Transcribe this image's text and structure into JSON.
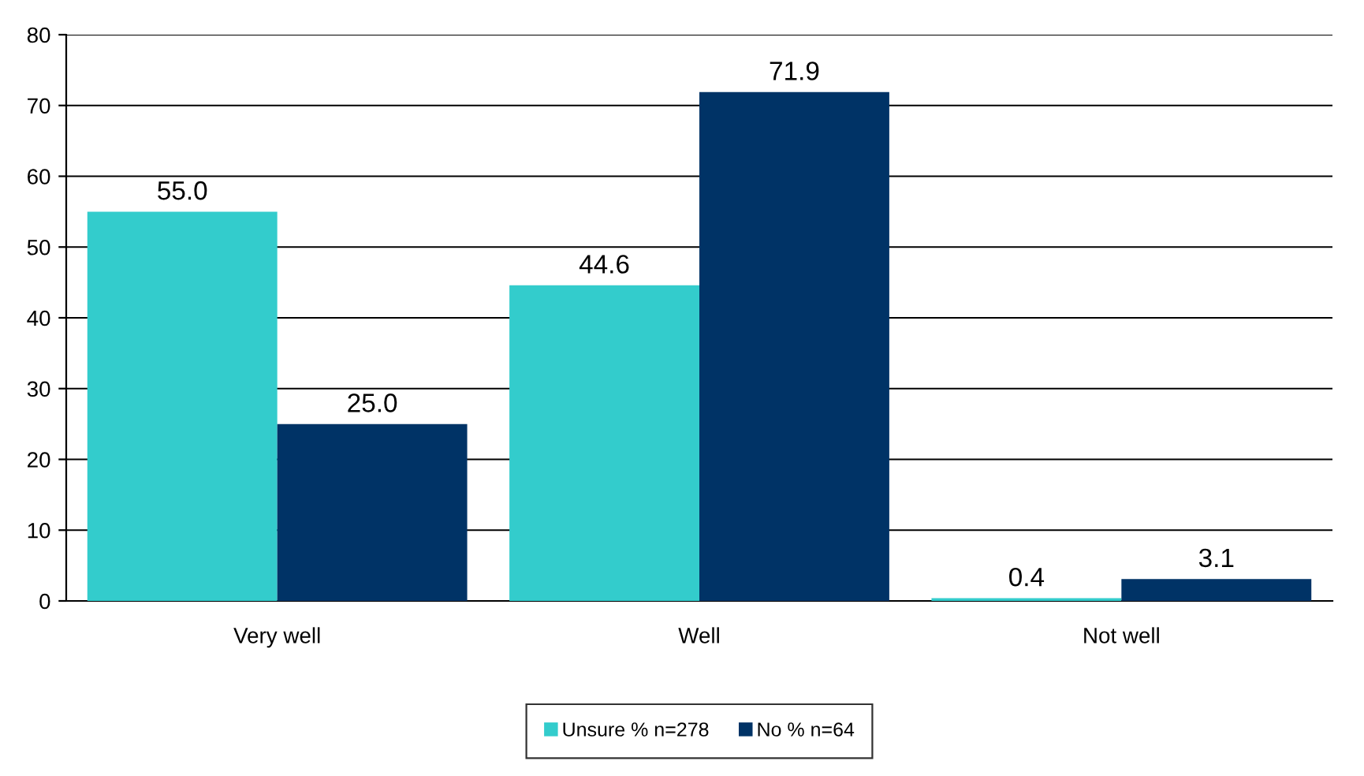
{
  "chart_data": {
    "type": "bar",
    "categories": [
      "Very well",
      "Well",
      "Not well"
    ],
    "series": [
      {
        "name": "Unsure % n=278",
        "color": "#33cccc",
        "values": [
          55.0,
          44.6,
          0.4
        ],
        "value_labels": [
          "55.0",
          "44.6",
          "0.4"
        ]
      },
      {
        "name": "No % n=64",
        "color": "#003366",
        "values": [
          25.0,
          71.9,
          3.1
        ],
        "value_labels": [
          "25.0",
          "71.9",
          "3.1"
        ]
      }
    ],
    "ylim": [
      0,
      80
    ],
    "yticks": [
      0,
      10,
      20,
      30,
      40,
      50,
      60,
      70,
      80
    ],
    "grid": "y",
    "legend": "bottom"
  }
}
